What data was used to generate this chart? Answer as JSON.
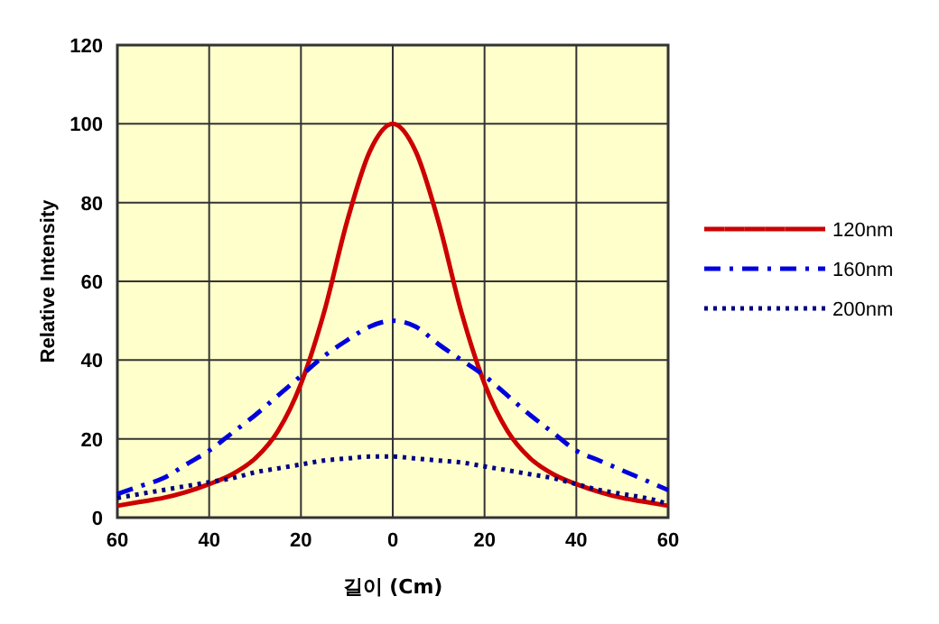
{
  "chart_data": {
    "type": "line",
    "xlabel": "길이 (Cm)",
    "ylabel": "Relative Intensity",
    "x": [
      -60,
      -55,
      -50,
      -45,
      -40,
      -35,
      -30,
      -25,
      -20,
      -15,
      -10,
      -5,
      0,
      5,
      10,
      15,
      20,
      25,
      30,
      35,
      40,
      45,
      50,
      55,
      60
    ],
    "series": [
      {
        "name": "120nm",
        "color": "#cc0000",
        "line_style": "solid",
        "values": [
          3,
          4,
          5,
          6.5,
          8.5,
          11,
          15,
          22,
          34,
          52,
          75,
          93,
          100,
          93,
          75,
          52,
          34,
          22,
          15,
          11,
          8.5,
          6.5,
          5,
          4,
          3
        ]
      },
      {
        "name": "160nm",
        "color": "#0000dd",
        "line_style": "dashdot",
        "values": [
          6,
          8,
          10,
          13.5,
          17,
          21.5,
          26,
          31,
          36,
          41,
          45,
          48.5,
          50,
          48.5,
          44,
          40,
          36,
          31,
          26,
          21.5,
          17,
          14.5,
          12,
          9.5,
          7
        ]
      },
      {
        "name": "200nm",
        "color": "#000080",
        "line_style": "dotted",
        "values": [
          5,
          6,
          7,
          8,
          9,
          10,
          11.5,
          12.5,
          13.5,
          14.5,
          15,
          15.5,
          15.5,
          15,
          14.5,
          14,
          13,
          12,
          11,
          10,
          8.5,
          7,
          6,
          5,
          3.5
        ]
      }
    ],
    "xlim": [
      -60,
      60
    ],
    "xticks": [
      {
        "value": -60,
        "label": "60"
      },
      {
        "value": -40,
        "label": "40"
      },
      {
        "value": -20,
        "label": "20"
      },
      0,
      20,
      40,
      60
    ],
    "ylim": [
      0,
      120
    ],
    "yticks": [
      0,
      20,
      40,
      60,
      80,
      100,
      120
    ],
    "grid": true,
    "legend": "right"
  }
}
